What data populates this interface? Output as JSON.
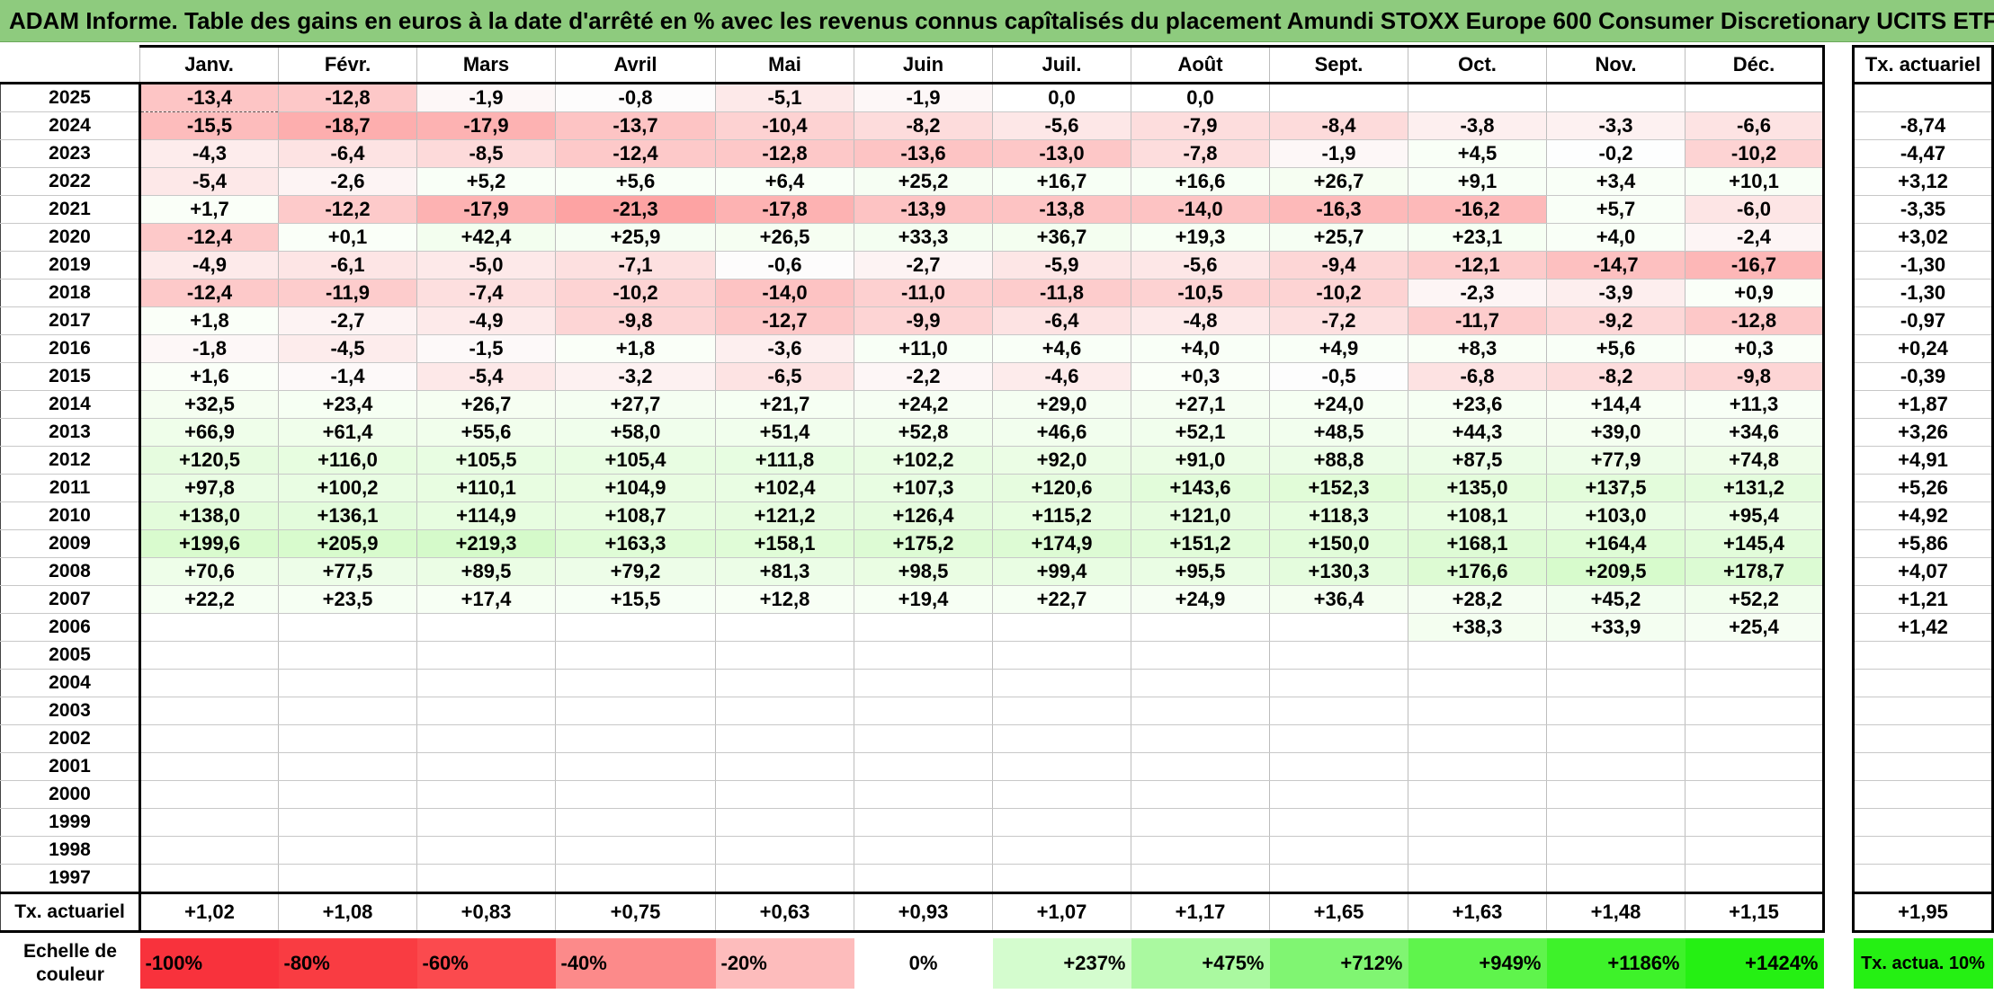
{
  "title": "ADAM Informe. Table des gains en euros à la date d'arrêté en % avec les revenus connus capîtalisés du placement Amundi STOXX Europe 600 Consumer Discretionary UCITS ETF",
  "months": [
    "Janv.",
    "Févr.",
    "Mars",
    "Avril",
    "Mai",
    "Juin",
    "Juil.",
    "Août",
    "Sept.",
    "Oct.",
    "Nov.",
    "Déc."
  ],
  "side_header": "Tx. actuariel",
  "rows": [
    {
      "year": "2025",
      "values": [
        "-13,4",
        "-12,8",
        "-1,9",
        "-0,8",
        "-5,1",
        "-1,9",
        "0,0",
        "0,0",
        "",
        "",
        "",
        ""
      ],
      "rate": ""
    },
    {
      "year": "2024",
      "values": [
        "-15,5",
        "-18,7",
        "-17,9",
        "-13,7",
        "-10,4",
        "-8,2",
        "-5,6",
        "-7,9",
        "-8,4",
        "-3,8",
        "-3,3",
        "-6,6"
      ],
      "rate": "-8,74"
    },
    {
      "year": "2023",
      "values": [
        "-4,3",
        "-6,4",
        "-8,5",
        "-12,4",
        "-12,8",
        "-13,6",
        "-13,0",
        "-7,8",
        "-1,9",
        "+4,5",
        "-0,2",
        "-10,2"
      ],
      "rate": "-4,47"
    },
    {
      "year": "2022",
      "values": [
        "-5,4",
        "-2,6",
        "+5,2",
        "+5,6",
        "+6,4",
        "+25,2",
        "+16,7",
        "+16,6",
        "+26,7",
        "+9,1",
        "+3,4",
        "+10,1"
      ],
      "rate": "+3,12"
    },
    {
      "year": "2021",
      "values": [
        "+1,7",
        "-12,2",
        "-17,9",
        "-21,3",
        "-17,8",
        "-13,9",
        "-13,8",
        "-14,0",
        "-16,3",
        "-16,2",
        "+5,7",
        "-6,0"
      ],
      "rate": "-3,35"
    },
    {
      "year": "2020",
      "values": [
        "-12,4",
        "+0,1",
        "+42,4",
        "+25,9",
        "+26,5",
        "+33,3",
        "+36,7",
        "+19,3",
        "+25,7",
        "+23,1",
        "+4,0",
        "-2,4"
      ],
      "rate": "+3,02"
    },
    {
      "year": "2019",
      "values": [
        "-4,9",
        "-6,1",
        "-5,0",
        "-7,1",
        "-0,6",
        "-2,7",
        "-5,9",
        "-5,6",
        "-9,4",
        "-12,1",
        "-14,7",
        "-16,7"
      ],
      "rate": "-1,30"
    },
    {
      "year": "2018",
      "values": [
        "-12,4",
        "-11,9",
        "-7,4",
        "-10,2",
        "-14,0",
        "-11,0",
        "-11,8",
        "-10,5",
        "-10,2",
        "-2,3",
        "-3,9",
        "+0,9"
      ],
      "rate": "-1,30"
    },
    {
      "year": "2017",
      "values": [
        "+1,8",
        "-2,7",
        "-4,9",
        "-9,8",
        "-12,7",
        "-9,9",
        "-6,4",
        "-4,8",
        "-7,2",
        "-11,7",
        "-9,2",
        "-12,8"
      ],
      "rate": "-0,97"
    },
    {
      "year": "2016",
      "values": [
        "-1,8",
        "-4,5",
        "-1,5",
        "+1,8",
        "-3,6",
        "+11,0",
        "+4,6",
        "+4,0",
        "+4,9",
        "+8,3",
        "+5,6",
        "+0,3"
      ],
      "rate": "+0,24"
    },
    {
      "year": "2015",
      "values": [
        "+1,6",
        "-1,4",
        "-5,4",
        "-3,2",
        "-6,5",
        "-2,2",
        "-4,6",
        "+0,3",
        "-0,5",
        "-6,8",
        "-8,2",
        "-9,8"
      ],
      "rate": "-0,39"
    },
    {
      "year": "2014",
      "values": [
        "+32,5",
        "+23,4",
        "+26,7",
        "+27,7",
        "+21,7",
        "+24,2",
        "+29,0",
        "+27,1",
        "+24,0",
        "+23,6",
        "+14,4",
        "+11,3"
      ],
      "rate": "+1,87"
    },
    {
      "year": "2013",
      "values": [
        "+66,9",
        "+61,4",
        "+55,6",
        "+58,0",
        "+51,4",
        "+52,8",
        "+46,6",
        "+52,1",
        "+48,5",
        "+44,3",
        "+39,0",
        "+34,6"
      ],
      "rate": "+3,26"
    },
    {
      "year": "2012",
      "values": [
        "+120,5",
        "+116,0",
        "+105,5",
        "+105,4",
        "+111,8",
        "+102,2",
        "+92,0",
        "+91,0",
        "+88,8",
        "+87,5",
        "+77,9",
        "+74,8"
      ],
      "rate": "+4,91"
    },
    {
      "year": "2011",
      "values": [
        "+97,8",
        "+100,2",
        "+110,1",
        "+104,9",
        "+102,4",
        "+107,3",
        "+120,6",
        "+143,6",
        "+152,3",
        "+135,0",
        "+137,5",
        "+131,2"
      ],
      "rate": "+5,26"
    },
    {
      "year": "2010",
      "values": [
        "+138,0",
        "+136,1",
        "+114,9",
        "+108,7",
        "+121,2",
        "+126,4",
        "+115,2",
        "+121,0",
        "+118,3",
        "+108,1",
        "+103,0",
        "+95,4"
      ],
      "rate": "+4,92"
    },
    {
      "year": "2009",
      "values": [
        "+199,6",
        "+205,9",
        "+219,3",
        "+163,3",
        "+158,1",
        "+175,2",
        "+174,9",
        "+151,2",
        "+150,0",
        "+168,1",
        "+164,4",
        "+145,4"
      ],
      "rate": "+5,86"
    },
    {
      "year": "2008",
      "values": [
        "+70,6",
        "+77,5",
        "+89,5",
        "+79,2",
        "+81,3",
        "+98,5",
        "+99,4",
        "+95,5",
        "+130,3",
        "+176,6",
        "+209,5",
        "+178,7"
      ],
      "rate": "+4,07"
    },
    {
      "year": "2007",
      "values": [
        "+22,2",
        "+23,5",
        "+17,4",
        "+15,5",
        "+12,8",
        "+19,4",
        "+22,7",
        "+24,9",
        "+36,4",
        "+28,2",
        "+45,2",
        "+52,2"
      ],
      "rate": "+1,21"
    },
    {
      "year": "2006",
      "values": [
        "",
        "",
        "",
        "",
        "",
        "",
        "",
        "",
        "",
        "+38,3",
        "+33,9",
        "+25,4"
      ],
      "rate": "+1,42"
    },
    {
      "year": "2005",
      "values": [
        "",
        "",
        "",
        "",
        "",
        "",
        "",
        "",
        "",
        "",
        "",
        ""
      ],
      "rate": ""
    },
    {
      "year": "2004",
      "values": [
        "",
        "",
        "",
        "",
        "",
        "",
        "",
        "",
        "",
        "",
        "",
        ""
      ],
      "rate": ""
    },
    {
      "year": "2003",
      "values": [
        "",
        "",
        "",
        "",
        "",
        "",
        "",
        "",
        "",
        "",
        "",
        ""
      ],
      "rate": ""
    },
    {
      "year": "2002",
      "values": [
        "",
        "",
        "",
        "",
        "",
        "",
        "",
        "",
        "",
        "",
        "",
        ""
      ],
      "rate": ""
    },
    {
      "year": "2001",
      "values": [
        "",
        "",
        "",
        "",
        "",
        "",
        "",
        "",
        "",
        "",
        "",
        ""
      ],
      "rate": ""
    },
    {
      "year": "2000",
      "values": [
        "",
        "",
        "",
        "",
        "",
        "",
        "",
        "",
        "",
        "",
        "",
        ""
      ],
      "rate": ""
    },
    {
      "year": "1999",
      "values": [
        "",
        "",
        "",
        "",
        "",
        "",
        "",
        "",
        "",
        "",
        "",
        ""
      ],
      "rate": ""
    },
    {
      "year": "1998",
      "values": [
        "",
        "",
        "",
        "",
        "",
        "",
        "",
        "",
        "",
        "",
        "",
        ""
      ],
      "rate": ""
    },
    {
      "year": "1997",
      "values": [
        "",
        "",
        "",
        "",
        "",
        "",
        "",
        "",
        "",
        "",
        "",
        ""
      ],
      "rate": ""
    }
  ],
  "total": {
    "label": "Tx. actuariel",
    "values": [
      "+1,02",
      "+1,08",
      "+0,83",
      "+0,75",
      "+0,63",
      "+0,93",
      "+1,07",
      "+1,17",
      "+1,65",
      "+1,63",
      "+1,48",
      "+1,15"
    ],
    "rate": "+1,95"
  },
  "legend": {
    "label": "Echelle de couleur",
    "steps": [
      {
        "text": "-100%",
        "color": "#f8323c"
      },
      {
        "text": "-80%",
        "color": "#f93c42"
      },
      {
        "text": "-60%",
        "color": "#fb4a4e"
      },
      {
        "text": "-40%",
        "color": "#fc8a8a"
      },
      {
        "text": "-20%",
        "color": "#fdbcbc"
      },
      {
        "text": "0%",
        "color": "#ffffff"
      },
      {
        "text": "+237%",
        "color": "#d4fcce"
      },
      {
        "text": "+475%",
        "color": "#aaf9a0"
      },
      {
        "text": "+712%",
        "color": "#80f572"
      },
      {
        "text": "+949%",
        "color": "#5ff44c"
      },
      {
        "text": "+1186%",
        "color": "#3ef22a"
      },
      {
        "text": "+1424%",
        "color": "#25f013"
      }
    ],
    "side_text": "Tx. actua. 10%",
    "side_color": "#25f013"
  },
  "colors": {
    "title_bg": "#8ecb7e",
    "neg_strong": "#fc9c9c",
    "pos_soft": "#e6fde1"
  }
}
